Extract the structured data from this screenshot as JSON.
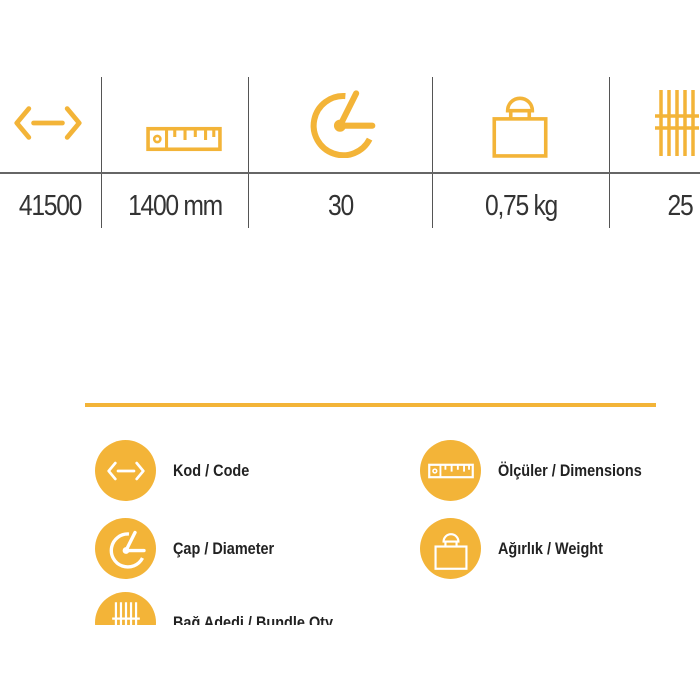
{
  "accent_color": "#F3B438",
  "spec_table": {
    "icons": [
      "code-arrows-icon",
      "ruler-icon",
      "diameter-icon",
      "weight-icon",
      "bundle-icon"
    ],
    "values": [
      "41500",
      "1400 mm",
      "30",
      "0,75 kg",
      "25"
    ]
  },
  "legend": {
    "items": [
      {
        "icon": "code-arrows-icon",
        "label": "Kod / Code"
      },
      {
        "icon": "ruler-icon",
        "label": "Ölçüler / Dimensions"
      },
      {
        "icon": "diameter-icon",
        "label": "Çap / Diameter"
      },
      {
        "icon": "weight-icon",
        "label": "Ağırlık / Weight"
      },
      {
        "icon": "bundle-icon",
        "label": "Bağ Adedi / Bundle Qty"
      }
    ]
  }
}
